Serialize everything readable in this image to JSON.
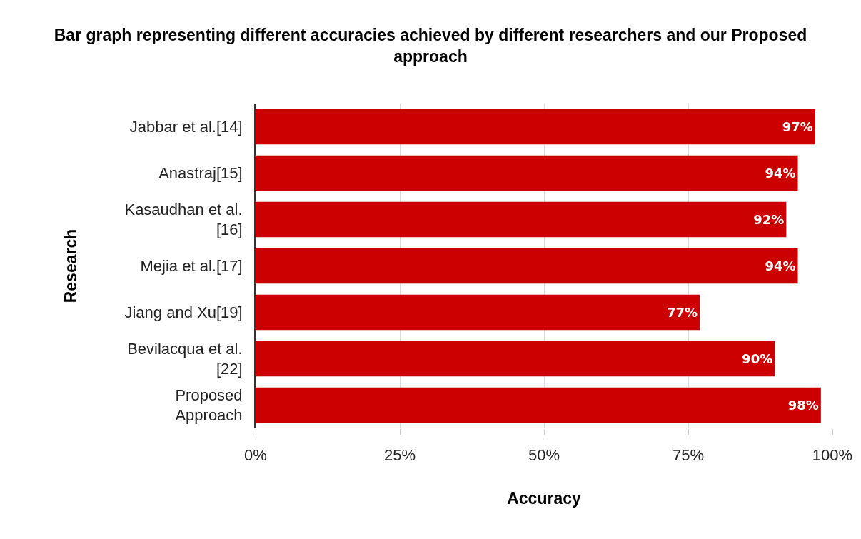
{
  "chart_data": {
    "type": "bar",
    "orientation": "horizontal",
    "title": "Bar graph representing different accuracies achieved by different researchers and our Proposed approach",
    "xlabel": "Accuracy",
    "ylabel": "Research",
    "categories": [
      "Jabbar et al.[14]",
      "Anastraj[15]",
      "Kasaudhan et al.\n[16]",
      "Mejia et al.[17]",
      "Jiang and Xu[19]",
      "Bevilacqua et al.\n[22]",
      "Proposed\nApproach"
    ],
    "values": [
      97,
      94,
      92,
      94,
      77,
      90,
      98
    ],
    "value_labels": [
      "97%",
      "94%",
      "92%",
      "94%",
      "77%",
      "90%",
      "98%"
    ],
    "color": "#cc0000",
    "xlim": [
      0,
      100
    ],
    "xticks": [
      {
        "value": 0,
        "label": "0%"
      },
      {
        "value": 25,
        "label": "25%"
      },
      {
        "value": 50,
        "label": "50%"
      },
      {
        "value": 75,
        "label": "75%"
      },
      {
        "value": 100,
        "label": "100%"
      }
    ],
    "grid": "x"
  }
}
